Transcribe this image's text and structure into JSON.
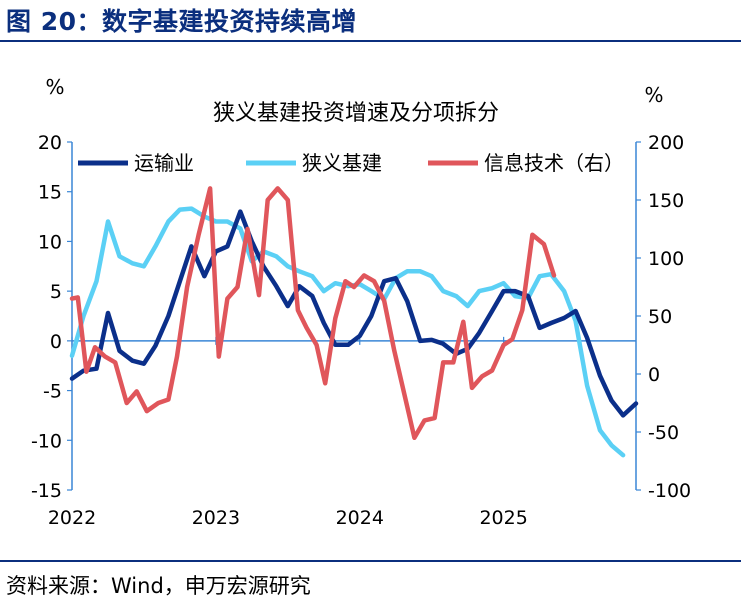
{
  "figure_title": "图 20：数字基建投资持续高增",
  "source_note": "资料来源：Wind，申万宏源研究",
  "chart_data": {
    "type": "line",
    "title": "狭义基建投资增速及分项拆分",
    "y_left_unit": "%",
    "y_right_unit": "%",
    "y_left_lim": [
      -15,
      20
    ],
    "y_left_ticks": [
      "20",
      "15",
      "10",
      "5",
      "0",
      "-5",
      "-10",
      "-15"
    ],
    "y_right_lim": [
      -100,
      200
    ],
    "y_right_ticks": [
      "200",
      "150",
      "100",
      "50",
      "0",
      "-50",
      "-100"
    ],
    "x_ticks": [
      "2022",
      "2023",
      "2024",
      "2025"
    ],
    "legend_position": "top",
    "colors": {
      "transport": "#0b2f8a",
      "infra": "#5bd0f5",
      "it": "#e0565b",
      "axis": "#3a86d6"
    },
    "series": [
      {
        "name": "运输业",
        "axis": "left",
        "color": "#0b2f8a",
        "points": [
          [
            2022.0,
            -3.8
          ],
          [
            2022.08,
            -3.0
          ],
          [
            2022.17,
            -2.8
          ],
          [
            2022.25,
            2.8
          ],
          [
            2022.33,
            -1.0
          ],
          [
            2022.42,
            -2.0
          ],
          [
            2022.5,
            -2.3
          ],
          [
            2022.58,
            -0.5
          ],
          [
            2022.67,
            2.5
          ],
          [
            2022.75,
            6.0
          ],
          [
            2022.83,
            9.5
          ],
          [
            2022.92,
            6.5
          ],
          [
            2023.0,
            9.0
          ],
          [
            2023.08,
            9.5
          ],
          [
            2023.17,
            13.0
          ],
          [
            2023.25,
            10.0
          ],
          [
            2023.33,
            7.5
          ],
          [
            2023.42,
            5.5
          ],
          [
            2023.5,
            3.5
          ],
          [
            2023.58,
            5.5
          ],
          [
            2023.67,
            4.5
          ],
          [
            2023.75,
            1.8
          ],
          [
            2023.83,
            -0.4
          ],
          [
            2023.92,
            -0.4
          ],
          [
            2024.0,
            0.5
          ],
          [
            2024.08,
            2.5
          ],
          [
            2024.17,
            6.0
          ],
          [
            2024.25,
            6.3
          ],
          [
            2024.33,
            4.0
          ],
          [
            2024.42,
            0.0
          ],
          [
            2024.5,
            0.1
          ],
          [
            2024.58,
            -0.3
          ],
          [
            2024.67,
            -1.3
          ],
          [
            2024.75,
            -0.8
          ],
          [
            2024.83,
            0.8
          ],
          [
            2024.92,
            3.0
          ],
          [
            2025.0,
            5.0
          ],
          [
            2025.08,
            5.0
          ],
          [
            2025.17,
            4.5
          ],
          [
            2025.25,
            1.3
          ],
          [
            2025.33,
            1.8
          ],
          [
            2025.42,
            2.3
          ],
          [
            2025.5,
            3.0
          ],
          [
            2025.58,
            0.3
          ],
          [
            2025.67,
            -3.5
          ],
          [
            2025.75,
            -6.0
          ],
          [
            2025.83,
            -7.5
          ],
          [
            2025.92,
            -6.3
          ]
        ]
      },
      {
        "name": "狭义基建",
        "axis": "left",
        "color": "#5bd0f5",
        "points": [
          [
            2022.0,
            -1.5
          ],
          [
            2022.08,
            2.5
          ],
          [
            2022.17,
            6.0
          ],
          [
            2022.25,
            12.0
          ],
          [
            2022.33,
            8.5
          ],
          [
            2022.42,
            7.8
          ],
          [
            2022.5,
            7.5
          ],
          [
            2022.58,
            9.5
          ],
          [
            2022.67,
            12.0
          ],
          [
            2022.75,
            13.2
          ],
          [
            2022.83,
            13.3
          ],
          [
            2022.92,
            12.5
          ],
          [
            2023.0,
            12.0
          ],
          [
            2023.08,
            12.0
          ],
          [
            2023.17,
            11.3
          ],
          [
            2023.25,
            8.0
          ],
          [
            2023.33,
            9.0
          ],
          [
            2023.42,
            8.5
          ],
          [
            2023.5,
            7.5
          ],
          [
            2023.58,
            7.0
          ],
          [
            2023.67,
            6.5
          ],
          [
            2023.75,
            5.0
          ],
          [
            2023.83,
            5.8
          ],
          [
            2023.92,
            5.5
          ],
          [
            2024.0,
            5.7
          ],
          [
            2024.08,
            5.0
          ],
          [
            2024.17,
            4.2
          ],
          [
            2024.25,
            6.3
          ],
          [
            2024.33,
            7.0
          ],
          [
            2024.42,
            7.0
          ],
          [
            2024.5,
            6.5
          ],
          [
            2024.58,
            5.0
          ],
          [
            2024.67,
            4.5
          ],
          [
            2024.75,
            3.5
          ],
          [
            2024.83,
            5.0
          ],
          [
            2024.92,
            5.3
          ],
          [
            2025.0,
            5.8
          ],
          [
            2025.08,
            4.5
          ],
          [
            2025.17,
            4.3
          ],
          [
            2025.25,
            6.5
          ],
          [
            2025.33,
            6.7
          ],
          [
            2025.42,
            5.0
          ],
          [
            2025.5,
            2.0
          ],
          [
            2025.58,
            -4.5
          ],
          [
            2025.67,
            -9.0
          ],
          [
            2025.75,
            -10.5
          ],
          [
            2025.83,
            -11.5
          ]
        ]
      },
      {
        "name": "信息技术（右）",
        "axis": "right",
        "color": "#e0565b",
        "points": [
          [
            2022.0,
            65
          ],
          [
            2022.04,
            66
          ],
          [
            2022.1,
            2
          ],
          [
            2022.16,
            23
          ],
          [
            2022.23,
            15
          ],
          [
            2022.3,
            10
          ],
          [
            2022.38,
            -25
          ],
          [
            2022.45,
            -15
          ],
          [
            2022.52,
            -32
          ],
          [
            2022.6,
            -25
          ],
          [
            2022.67,
            -22
          ],
          [
            2022.73,
            15
          ],
          [
            2022.8,
            75
          ],
          [
            2022.88,
            120
          ],
          [
            2022.96,
            160
          ],
          [
            2023.02,
            15
          ],
          [
            2023.08,
            65
          ],
          [
            2023.15,
            75
          ],
          [
            2023.22,
            125
          ],
          [
            2023.3,
            68
          ],
          [
            2023.36,
            150
          ],
          [
            2023.43,
            160
          ],
          [
            2023.5,
            150
          ],
          [
            2023.57,
            55
          ],
          [
            2023.63,
            40
          ],
          [
            2023.7,
            25
          ],
          [
            2023.76,
            -8
          ],
          [
            2023.83,
            48
          ],
          [
            2023.9,
            80
          ],
          [
            2023.96,
            75
          ],
          [
            2024.03,
            85
          ],
          [
            2024.1,
            80
          ],
          [
            2024.17,
            63
          ],
          [
            2024.24,
            20
          ],
          [
            2024.33,
            -28
          ],
          [
            2024.38,
            -55
          ],
          [
            2024.45,
            -40
          ],
          [
            2024.52,
            -38
          ],
          [
            2024.58,
            10
          ],
          [
            2024.65,
            10
          ],
          [
            2024.72,
            45
          ],
          [
            2024.78,
            -12
          ],
          [
            2024.85,
            -2
          ],
          [
            2024.92,
            3
          ],
          [
            2025.0,
            25
          ],
          [
            2025.06,
            30
          ],
          [
            2025.13,
            55
          ],
          [
            2025.2,
            120
          ],
          [
            2025.28,
            112
          ],
          [
            2025.35,
            85
          ]
        ]
      }
    ]
  }
}
